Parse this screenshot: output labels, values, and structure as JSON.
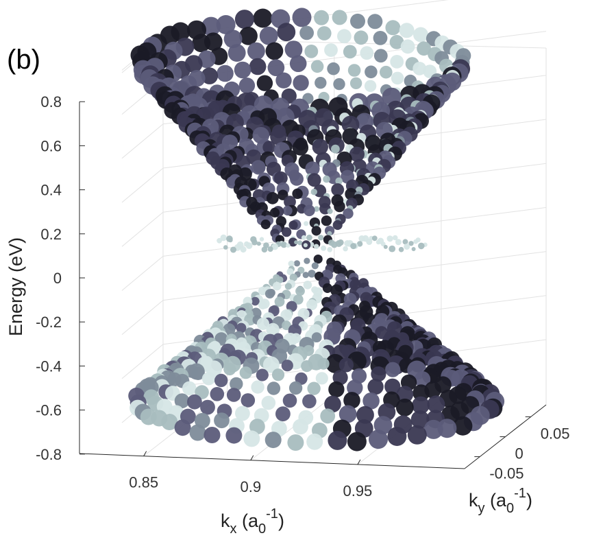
{
  "chart_data": {
    "type": "scatter",
    "projection": "3d",
    "panel_label": "(b)",
    "title": "",
    "xlabel": {
      "base": "k",
      "sub": "x",
      "mid": " (a",
      "sub2": "0",
      "sup": "-1",
      "end": ")"
    },
    "ylabel": {
      "base": "k",
      "sub": "y",
      "mid": " (a",
      "sub2": "0",
      "sup": "-1",
      "end": ")"
    },
    "zlabel": "Energy  (eV)",
    "x_ticks": [
      "0.85",
      "0.9",
      "0.95"
    ],
    "x_tick_values": [
      0.85,
      0.9,
      0.95
    ],
    "xlim": [
      0.82,
      1.0
    ],
    "y_ticks": [
      "-0.05",
      "0",
      "0.05"
    ],
    "y_tick_values": [
      -0.05,
      0,
      0.05
    ],
    "ylim": [
      -0.08,
      0.08
    ],
    "z_ticks": [
      "-0.8",
      "-0.6",
      "-0.4",
      "-0.2",
      "0",
      "0.2",
      "0.4",
      "0.6",
      "0.8"
    ],
    "z_tick_values": [
      -0.8,
      -0.6,
      -0.4,
      -0.2,
      0,
      0.2,
      0.4,
      0.6,
      0.8
    ],
    "zlim": [
      -0.8,
      0.8
    ],
    "grid": true,
    "dirac_point": {
      "kx": 0.9,
      "ky": 0,
      "energy": 0.1
    },
    "bands": [
      {
        "kind": "upper-cone",
        "apex_energy": 0.1,
        "max_energy": 0.8
      },
      {
        "kind": "flat-band",
        "energy": 0.18
      },
      {
        "kind": "lower-cone",
        "apex_energy": 0.0,
        "min_energy": -0.75
      }
    ],
    "marker_shading": "weight-coded, light grey-cyan (low) to near-black (high)",
    "colors": [
      "#d6e6e6",
      "#a8bdbf",
      "#7e8c9a",
      "#5c5c7a",
      "#3a3852",
      "#1a1a26"
    ]
  }
}
